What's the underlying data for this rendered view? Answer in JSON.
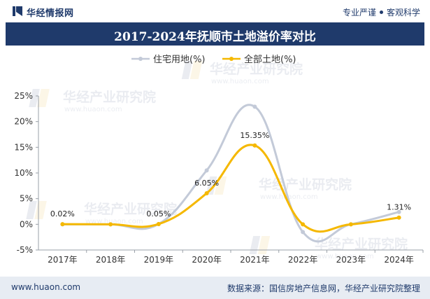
{
  "header": {
    "brand": "华经情报网",
    "tagline_left": "专业严谨",
    "tagline_right": "客观科学"
  },
  "chart_data": {
    "type": "line",
    "title": "2017-2024年抚顺市土地溢价率对比",
    "categories": [
      "2017年",
      "2018年",
      "2019年",
      "2020年",
      "2021年",
      "2022年",
      "2023年",
      "2024年"
    ],
    "series": [
      {
        "name": "住宅用地(%)",
        "color": "#c3cad8",
        "values": [
          0.0,
          0.0,
          0.05,
          10.5,
          22.9,
          -1.5,
          0.0,
          2.4
        ],
        "labels": [
          null,
          null,
          null,
          null,
          null,
          null,
          null,
          null
        ]
      },
      {
        "name": "全部土地(%)",
        "color": "#f5b800",
        "values": [
          0.02,
          0.0,
          0.05,
          6.05,
          15.35,
          0.0,
          0.0,
          1.31
        ],
        "labels": [
          "0.02%",
          null,
          "0.05%",
          "6.05%",
          "15.35%",
          null,
          null,
          "1.31%"
        ]
      }
    ],
    "yticks": [
      "25%",
      "20%",
      "15%",
      "10%",
      "5%",
      "0%",
      "-5%"
    ],
    "ylim": [
      -5,
      25
    ],
    "legend_position": "top-center",
    "watermark": "华经产业研究院",
    "watermark_url": "www.huaon.com"
  },
  "footer": {
    "site": "www.huaon.com",
    "source": "数据来源：国信房地产信息网，华经产业研究院整理"
  }
}
